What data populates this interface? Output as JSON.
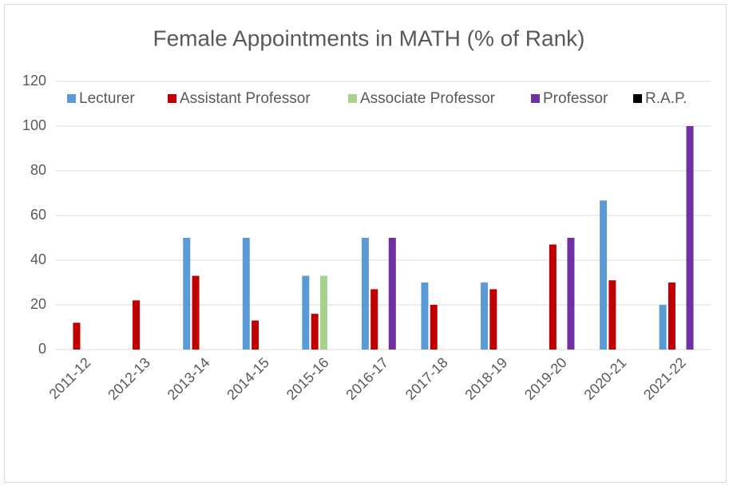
{
  "chart_data": {
    "type": "bar",
    "title": "Female Appointments in MATH (% of Rank)",
    "categories": [
      "2011-12",
      "2012-13",
      "2013-14",
      "2014-15",
      "2015-16",
      "2016-17",
      "2017-18",
      "2018-19",
      "2019-20",
      "2020-21",
      "2021-22"
    ],
    "series": [
      {
        "name": "Lecturer",
        "color": "#5b9bd5",
        "values": [
          0,
          0,
          50,
          50,
          33,
          50,
          30,
          30,
          0,
          66.7,
          20
        ]
      },
      {
        "name": "Assistant Professor",
        "color": "#c00000",
        "values": [
          12,
          22,
          33,
          13,
          16,
          27,
          20,
          27,
          47,
          31,
          30
        ]
      },
      {
        "name": "Associate Professor",
        "color": "#a9d18e",
        "values": [
          0,
          0,
          0,
          0,
          33,
          0,
          0,
          0,
          0,
          0,
          0
        ]
      },
      {
        "name": "Professor",
        "color": "#7030a0",
        "values": [
          0,
          0,
          0,
          0,
          0,
          50,
          0,
          0,
          50,
          0,
          100
        ]
      },
      {
        "name": "R.A.P.",
        "color": "#000000",
        "values": [
          0,
          0,
          0,
          0,
          0,
          0,
          0,
          0,
          0,
          0,
          0
        ]
      }
    ],
    "ylim": [
      0,
      120
    ],
    "yticks": [
      0,
      20,
      40,
      60,
      80,
      100,
      120
    ],
    "grid": true,
    "legend": "top"
  }
}
